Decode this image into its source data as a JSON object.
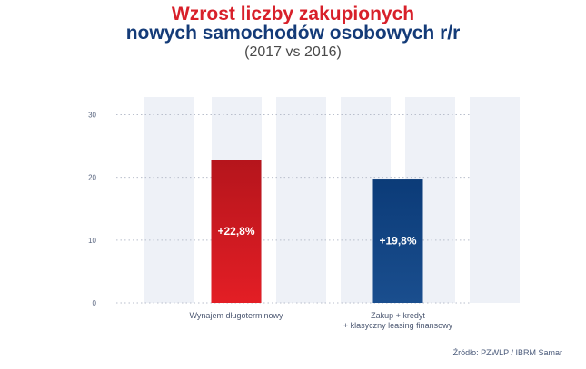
{
  "title_line1": "Wzrost liczby zakupionych",
  "title_line2": "nowych samochodów osobowych r/r",
  "subtitle": "(2017 vs 2016)",
  "source": "Źródło: PZWLP / IBRM Samar",
  "colors": {
    "title_red": "#d8202a",
    "title_blue": "#143b78",
    "bar_red_top": "#b5151c",
    "bar_red_bottom": "#e31e25",
    "bar_blue_top": "#0b3b78",
    "bar_blue_bottom": "#1a4e8e",
    "stripe": "#eef1f7"
  },
  "chart_data": {
    "type": "bar",
    "categories": [
      [
        "Wynajem długoterminowy"
      ],
      [
        "Zakup + kredyt",
        "+ klasyczny leasing finansowy"
      ]
    ],
    "values": [
      22.8,
      19.8
    ],
    "value_labels": [
      "+22,8%",
      "+19,8%"
    ],
    "yticks": [
      "0",
      "10",
      "20",
      "30"
    ],
    "ylim": [
      0,
      36
    ],
    "grid": true
  }
}
